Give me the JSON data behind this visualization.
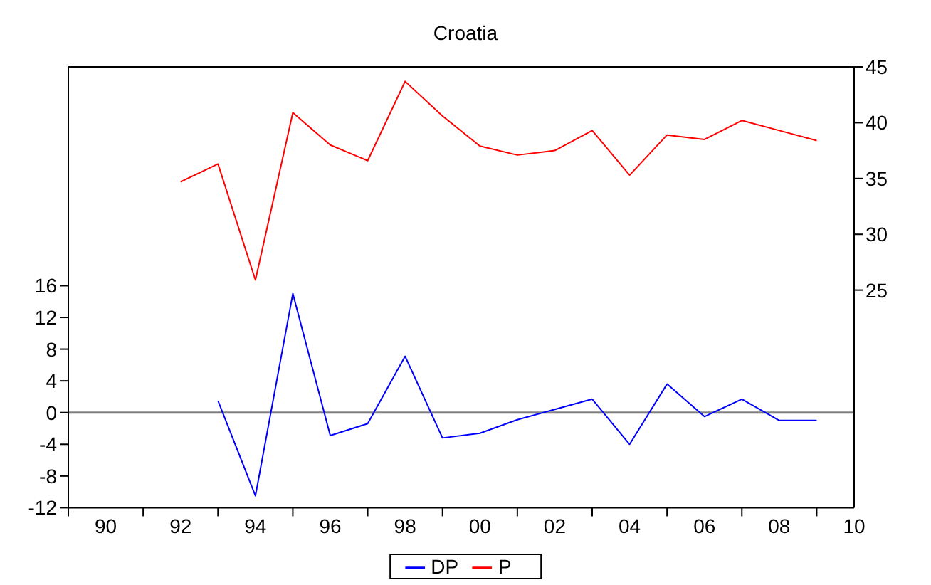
{
  "chart_data": {
    "type": "line",
    "title": "Croatia",
    "series": [
      {
        "name": "DP",
        "color": "#0000ff",
        "x": [
          1993,
          1994,
          1995,
          1996,
          1997,
          1998,
          1999,
          2000,
          2001,
          2002,
          2003,
          2004,
          2005,
          2006,
          2007,
          2008,
          2009
        ],
        "values": [
          1.5,
          -10.5,
          15.0,
          -2.9,
          -1.4,
          7.1,
          -3.2,
          -2.6,
          -0.9,
          0.4,
          1.7,
          -4.0,
          3.6,
          -0.5,
          1.7,
          -1.0,
          -1.0
        ]
      },
      {
        "name": "P",
        "color": "#ff0000",
        "axis": "y2",
        "x": [
          1992,
          1993,
          1994,
          1995,
          1996,
          1997,
          1998,
          1999,
          2000,
          2001,
          2002,
          2003,
          2004,
          2005,
          2006,
          2007,
          2008,
          2009
        ],
        "values": [
          34.7,
          36.3,
          25.9,
          40.9,
          38.0,
          36.6,
          43.7,
          40.6,
          37.9,
          37.1,
          37.5,
          39.3,
          35.3,
          38.9,
          38.5,
          40.2,
          39.3,
          38.4
        ]
      }
    ],
    "xlim": [
      1989,
      2010
    ],
    "xticks": [
      {
        "value": 1989,
        "label": null
      },
      {
        "value": 1990,
        "label": "90"
      },
      {
        "value": 1991,
        "label": null
      },
      {
        "value": 1992,
        "label": "92"
      },
      {
        "value": 1993,
        "label": null
      },
      {
        "value": 1994,
        "label": "94"
      },
      {
        "value": 1995,
        "label": null
      },
      {
        "value": 1996,
        "label": "96"
      },
      {
        "value": 1997,
        "label": null
      },
      {
        "value": 1998,
        "label": "98"
      },
      {
        "value": 1999,
        "label": null
      },
      {
        "value": 2000,
        "label": "00"
      },
      {
        "value": 2001,
        "label": null
      },
      {
        "value": 2002,
        "label": "02"
      },
      {
        "value": 2003,
        "label": null
      },
      {
        "value": 2004,
        "label": "04"
      },
      {
        "value": 2005,
        "label": null
      },
      {
        "value": 2006,
        "label": "06"
      },
      {
        "value": 2007,
        "label": null
      },
      {
        "value": 2008,
        "label": "08"
      },
      {
        "value": 2009,
        "label": null
      },
      {
        "value": 2010,
        "label": "10"
      }
    ],
    "ylim": [
      -12,
      43.6
    ],
    "yticks": [
      -12,
      -8,
      -4,
      0,
      4,
      8,
      12,
      16
    ],
    "y2lim": [
      5.5,
      45
    ],
    "y2ticks": [
      25,
      30,
      35,
      40,
      45
    ],
    "ref_lines": [
      {
        "axis": "y",
        "value": 0,
        "color": "#808080"
      }
    ],
    "legend": "bottom",
    "grid": false
  }
}
